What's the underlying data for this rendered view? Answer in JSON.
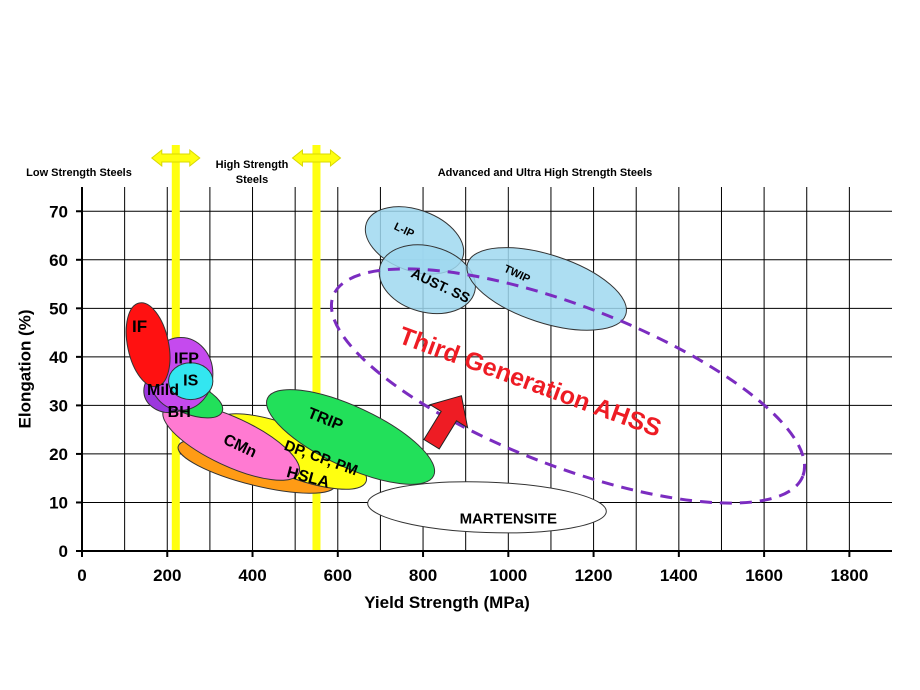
{
  "chart_data": {
    "type": "scatter",
    "title": "",
    "xlabel": "Yield Strength (MPa)",
    "ylabel": "Elongation (%)",
    "xlim": [
      0,
      1900
    ],
    "ylim": [
      0,
      75
    ],
    "x_ticks": [
      0,
      200,
      400,
      600,
      800,
      1000,
      1200,
      1400,
      1600,
      1800
    ],
    "y_ticks": [
      0,
      10,
      20,
      30,
      40,
      50,
      60,
      70
    ],
    "grid": true,
    "regions": [
      {
        "label": "Low Strength Steels",
        "x_from": 0,
        "x_to": 220
      },
      {
        "label": "High Strength Steels",
        "x_from": 220,
        "x_to": 550
      },
      {
        "label": "Advanced and Ultra High Strength Steels",
        "x_from": 550,
        "x_to": 1900
      }
    ],
    "boundaries": [
      220,
      550
    ],
    "series": [
      {
        "name": "MARTENSITE",
        "cx": 950,
        "cy": 9,
        "rx": 280,
        "ry": 5.2,
        "rot": 2,
        "color": "#ffffff"
      },
      {
        "name": "HSLA",
        "cx": 410,
        "cy": 17.5,
        "rx": 190,
        "ry": 4.0,
        "rot": 14,
        "color": "#ff9b15"
      },
      {
        "name": "DP, CP, PM",
        "cx": 490,
        "cy": 20.5,
        "rx": 190,
        "ry": 5.0,
        "rot": 22,
        "color": "#ffff10"
      },
      {
        "name": "CMn",
        "cx": 350,
        "cy": 22.5,
        "rx": 175,
        "ry": 5.0,
        "rot": 25,
        "color": "#ff7ad2"
      },
      {
        "name": "TRIP",
        "cx": 630,
        "cy": 23.5,
        "rx": 215,
        "ry": 6.2,
        "rot": 25,
        "color": "#22e05a"
      },
      {
        "name": "BH",
        "cx": 250,
        "cy": 31.5,
        "rx": 85,
        "ry": 3.2,
        "rot": 22,
        "color": "#22e05a"
      },
      {
        "name": "Mild",
        "cx": 205,
        "cy": 33.0,
        "rx": 60,
        "ry": 4.5,
        "rot": 0,
        "color": "#9c37de"
      },
      {
        "name": "IFP",
        "cx": 232,
        "cy": 36.5,
        "rx": 75,
        "ry": 7.5,
        "rot": 0,
        "color": "#c54aee"
      },
      {
        "name": "IS",
        "cx": 255,
        "cy": 35.0,
        "rx": 52,
        "ry": 3.8,
        "rot": 0,
        "color": "#33e6f0"
      },
      {
        "name": "IF",
        "cx": 155,
        "cy": 42.5,
        "rx": 48,
        "ry": 8.8,
        "rot": -12,
        "color": "#ff1111"
      },
      {
        "name": "L-IP",
        "cx": 780,
        "cy": 64.0,
        "rx": 120,
        "ry": 6.3,
        "rot": 20,
        "color": "#9fd8f0"
      },
      {
        "name": "AUST. SS",
        "cx": 810,
        "cy": 56.0,
        "rx": 115,
        "ry": 6.8,
        "rot": 15,
        "color": "#9fd8f0"
      },
      {
        "name": "TWIP",
        "cx": 1090,
        "cy": 54.0,
        "rx": 195,
        "ry": 7.0,
        "rot": 18,
        "color": "#9fd8f0"
      },
      {
        "name": "Third Generation AHSS",
        "cx": 1140,
        "cy": 34.0,
        "rx": 590,
        "ry": 16.5,
        "rot": 21,
        "color": "#7b2cc0",
        "dashed": true
      }
    ],
    "labels": [
      {
        "text": "IF",
        "x": 135,
        "y": 46,
        "rot": 0,
        "size": 17
      },
      {
        "text": "IFP",
        "x": 245,
        "y": 39.5,
        "rot": 0,
        "size": 16
      },
      {
        "text": "IS",
        "x": 255,
        "y": 35,
        "rot": 0,
        "size": 16
      },
      {
        "text": "Mild",
        "x": 190,
        "y": 33,
        "rot": 0,
        "size": 16
      },
      {
        "text": "BH",
        "x": 228,
        "y": 28.5,
        "rot": 0,
        "size": 16
      },
      {
        "text": "CMn",
        "x": 370,
        "y": 21.5,
        "rot": 25,
        "size": 16
      },
      {
        "text": "TRIP",
        "x": 570,
        "y": 27,
        "rot": 22,
        "size": 16
      },
      {
        "text": "DP, CP, PM",
        "x": 560,
        "y": 19,
        "rot": 20,
        "size": 15
      },
      {
        "text": "HSLA",
        "x": 530,
        "y": 15,
        "rot": 15,
        "size": 16
      },
      {
        "text": "MARTENSITE",
        "x": 1000,
        "y": 6.5,
        "rot": 0,
        "size": 15
      },
      {
        "text": "L-IP",
        "x": 755,
        "y": 66,
        "rot": 25,
        "size": 11
      },
      {
        "text": "AUST. SS",
        "x": 840,
        "y": 54.5,
        "rot": 25,
        "size": 14
      },
      {
        "text": "TWIP",
        "x": 1020,
        "y": 57,
        "rot": 25,
        "size": 11
      }
    ],
    "annotation": {
      "text": "Third Generation AHSS",
      "x": 1050,
      "y": 34.5,
      "rot": 20,
      "size": 25,
      "color": "#ee1c24"
    },
    "arrow": {
      "from": [
        820,
        22
      ],
      "to": [
        890,
        32
      ],
      "color": "#ee1c24"
    }
  }
}
